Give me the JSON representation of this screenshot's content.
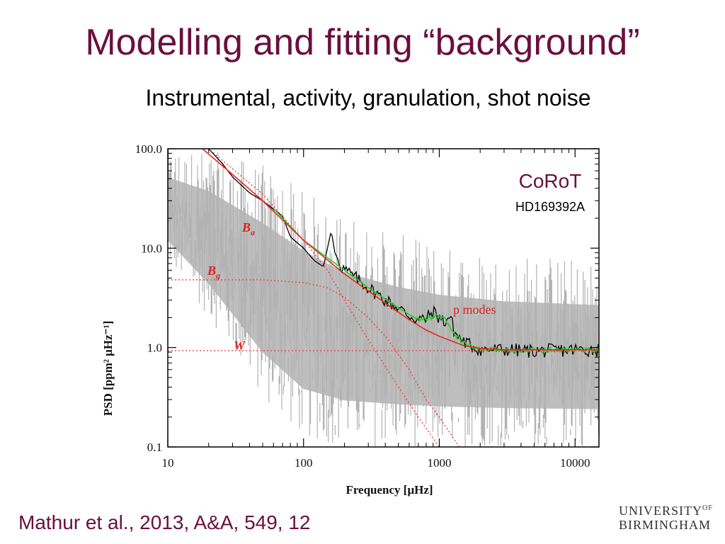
{
  "slide": {
    "title": "Modelling and fitting “background”",
    "subtitle": "Instrumental, activity, granulation, shot noise",
    "citation": "Mathur et al., 2013, A&A, 549, 12",
    "logo": {
      "line1": "UNIVERSITY",
      "line1_sup": "OF",
      "line2": "BIRMINGHAM"
    }
  },
  "chart_data": {
    "type": "line",
    "xlabel": "Frequency [μHz]",
    "ylabel": "PSD [ppm² μHz⁻¹]",
    "x_scale": "log",
    "y_scale": "log",
    "xlim": [
      10,
      15000
    ],
    "ylim": [
      0.1,
      100
    ],
    "x_ticks": [
      10,
      100,
      1000,
      10000
    ],
    "x_tick_labels": [
      "10",
      "100",
      "1000",
      "10000"
    ],
    "y_ticks": [
      0.1,
      1.0,
      10.0,
      100.0
    ],
    "y_tick_labels": [
      "0.1",
      "1.0",
      "10.0",
      "100.0"
    ],
    "grid": false,
    "annotations": {
      "corot": "CoRoT",
      "star": "HD169392A",
      "ba": "B",
      "ba_sub": "a",
      "bg": "B",
      "bg_sub": "g",
      "w": "W",
      "p_modes": "p modes"
    },
    "series": [
      {
        "role": "raw spectrum",
        "color": "#b3b3b3",
        "lower": [
          [
            10,
            7
          ],
          [
            20,
            2
          ],
          [
            50,
            0.3
          ],
          [
            100,
            0.12
          ],
          [
            200,
            0.1
          ],
          [
            15000,
            0.1
          ]
        ],
        "upper": [
          [
            10,
            100
          ],
          [
            20,
            100
          ],
          [
            50,
            70
          ],
          [
            100,
            40
          ],
          [
            200,
            22
          ],
          [
            500,
            14
          ],
          [
            1000,
            11
          ],
          [
            3000,
            9
          ],
          [
            15000,
            8
          ]
        ]
      },
      {
        "role": "smoothed spectrum",
        "color": "#000000",
        "points": [
          [
            20,
            100
          ],
          [
            25,
            72
          ],
          [
            30,
            52
          ],
          [
            40,
            36
          ],
          [
            50,
            30
          ],
          [
            70,
            21
          ],
          [
            80,
            13
          ],
          [
            100,
            10
          ],
          [
            120,
            7.5
          ],
          [
            140,
            6.5
          ],
          [
            150,
            10
          ],
          [
            160,
            15
          ],
          [
            170,
            9
          ],
          [
            190,
            6.5
          ],
          [
            220,
            5.5
          ],
          [
            300,
            4
          ],
          [
            400,
            3
          ],
          [
            500,
            2.5
          ],
          [
            600,
            2.1
          ],
          [
            700,
            1.9
          ],
          [
            800,
            1.95
          ],
          [
            900,
            2.3
          ],
          [
            1000,
            2.0
          ],
          [
            1100,
            1.8
          ],
          [
            1200,
            2.1
          ],
          [
            1300,
            1.4
          ],
          [
            1500,
            1.15
          ],
          [
            2000,
            0.95
          ],
          [
            3000,
            0.95
          ],
          [
            5000,
            0.92
          ],
          [
            10000,
            0.95
          ],
          [
            15000,
            0.95
          ]
        ]
      },
      {
        "role": "fitted model (green)",
        "color": "#22cc22",
        "points": [
          [
            60,
            25
          ],
          [
            100,
            12
          ],
          [
            200,
            6
          ],
          [
            300,
            4
          ],
          [
            500,
            2.5
          ],
          [
            700,
            1.9
          ],
          [
            900,
            2.0
          ],
          [
            1000,
            2.1
          ],
          [
            1100,
            1.9
          ],
          [
            1300,
            1.35
          ],
          [
            1600,
            1.05
          ],
          [
            2000,
            0.95
          ],
          [
            15000,
            0.95
          ]
        ]
      },
      {
        "role": "total background fit",
        "color": "#ee2222",
        "style": "solid",
        "points": [
          [
            18,
            100
          ],
          [
            30,
            55
          ],
          [
            50,
            30
          ],
          [
            100,
            12
          ],
          [
            200,
            5.5
          ],
          [
            400,
            2.8
          ],
          [
            600,
            1.9
          ],
          [
            800,
            1.5
          ],
          [
            1000,
            1.3
          ],
          [
            1500,
            1.05
          ],
          [
            2000,
            0.98
          ],
          [
            3000,
            0.95
          ],
          [
            15000,
            0.95
          ]
        ]
      },
      {
        "role": "B_a component",
        "color": "#ee4444",
        "style": "dotted",
        "points": [
          [
            10,
            200
          ],
          [
            20,
            100
          ],
          [
            50,
            35
          ],
          [
            100,
            12
          ],
          [
            150,
            6
          ],
          [
            200,
            3
          ],
          [
            300,
            1.2
          ],
          [
            500,
            0.4
          ],
          [
            700,
            0.2
          ],
          [
            1000,
            0.1
          ]
        ]
      },
      {
        "role": "B_g component",
        "color": "#ee4444",
        "style": "dotted",
        "points": [
          [
            10,
            4.8
          ],
          [
            50,
            4.8
          ],
          [
            100,
            4.5
          ],
          [
            150,
            4
          ],
          [
            200,
            3.2
          ],
          [
            300,
            2
          ],
          [
            400,
            1.3
          ],
          [
            600,
            0.6
          ],
          [
            800,
            0.3
          ],
          [
            1000,
            0.2
          ],
          [
            1400,
            0.1
          ]
        ]
      },
      {
        "role": "W white noise",
        "color": "#ee4444",
        "style": "dotted",
        "points": [
          [
            10,
            0.93
          ],
          [
            15000,
            0.93
          ]
        ]
      }
    ]
  }
}
